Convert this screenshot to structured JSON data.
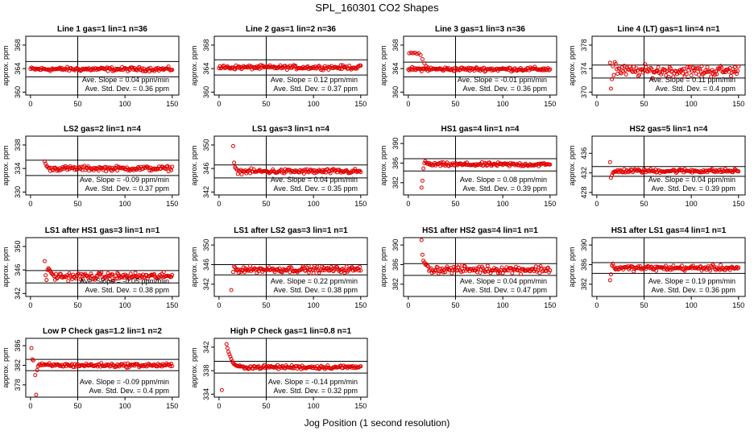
{
  "chart_data": {
    "type": "scatter",
    "title": "SPL_160301  CO2 Shapes",
    "xlabel": "Jog Position (1 second resolution)",
    "ylabel": "approx. ppm",
    "marker_color": "#e00000",
    "x_ticks": [
      0,
      50,
      100,
      150
    ],
    "x_vline": 50,
    "panels": [
      {
        "title": "Line 1 gas=1 lin=1 n=36",
        "ylim": [
          359.5,
          369.5
        ],
        "yticks": [
          360,
          364,
          368
        ],
        "hlines": [
          365.2,
          362.6
        ],
        "series": {
          "x_start": 0,
          "x_end": 150,
          "level": 363.9,
          "spread": 0.25
        },
        "slope_text": "Ave. Slope = 0.04  ppm/min",
        "sd_text": "Ave. Std. Dev. = 0.36  ppm"
      },
      {
        "title": "Line 2 gas=1 lin=2 n=36",
        "ylim": [
          359.5,
          369.5
        ],
        "yticks": [
          360,
          364,
          368
        ],
        "hlines": [
          365.5,
          362.9
        ],
        "series": {
          "x_start": 0,
          "x_end": 150,
          "level": 364.2,
          "spread": 0.25
        },
        "slope_text": "Ave. Slope = 0.12  ppm/min",
        "sd_text": "Ave. Std. Dev. = 0.37  ppm"
      },
      {
        "title": "Line 3 gas=1 lin=3 n=36",
        "ylim": [
          359.5,
          369.5
        ],
        "yticks": [
          360,
          364,
          368
        ],
        "hlines": [
          365.1,
          362.6
        ],
        "series": {
          "x_start": 0,
          "x_end": 150,
          "level": 363.9,
          "spread": 0.25,
          "pre": [
            [
              1,
              366.6
            ],
            [
              3,
              366.7
            ],
            [
              5,
              366.6
            ],
            [
              7,
              366.7
            ],
            [
              9,
              366.5
            ],
            [
              11,
              366.6
            ],
            [
              13,
              366.3
            ],
            [
              15,
              365.6
            ],
            [
              17,
              364.9
            ],
            [
              19,
              364.4
            ],
            [
              21,
              364.2
            ]
          ]
        },
        "slope_text": "Ave. Slope = -0.01  ppm/min",
        "sd_text": "Ave. Std. Dev. = 0.36  ppm"
      },
      {
        "title": "Line 4 (LT) gas=1 lin=4 n=1",
        "ylim": [
          369.5,
          379.5
        ],
        "yticks": [
          370,
          374,
          378
        ],
        "hlines": [
          374.6,
          372.4
        ],
        "series": {
          "x_start": 22,
          "x_end": 150,
          "level": 373.6,
          "spread": 0.7,
          "pre": [
            [
              14,
              375.0
            ],
            [
              15,
              370.6
            ],
            [
              16,
              372.2
            ],
            [
              17,
              374.4
            ],
            [
              18,
              372.9
            ],
            [
              19,
              375.1
            ],
            [
              20,
              374.8
            ],
            [
              21,
              373.9
            ]
          ]
        },
        "slope_text": "Ave. Slope = 0.11  ppm/min",
        "sd_text": "Ave. Std. Dev. = 0.4  ppm"
      },
      {
        "title": "LS2 gas=2 lin=1 n=4",
        "ylim": [
          329.5,
          339.5
        ],
        "yticks": [
          330,
          334,
          338
        ],
        "hlines": [
          335.4,
          332.8
        ],
        "series": {
          "x_start": 20,
          "x_end": 150,
          "level": 334.0,
          "spread": 0.3,
          "pre": [
            [
              15,
              335.2
            ],
            [
              16,
              334.8
            ],
            [
              17,
              334.4
            ],
            [
              18,
              334.3
            ],
            [
              19,
              334.1
            ]
          ]
        },
        "slope_text": "Ave. Slope = -0.09  ppm/min",
        "sd_text": "Ave. Std. Dev. = 0.37  ppm"
      },
      {
        "title": "LS1 gas=3 lin=1 n=4",
        "ylim": [
          341.5,
          351.5
        ],
        "yticks": [
          342,
          346,
          350
        ],
        "hlines": [
          346.6,
          344.4
        ],
        "series": {
          "x_start": 20,
          "x_end": 150,
          "level": 345.5,
          "spread": 0.3,
          "pre": [
            [
              15,
              349.8
            ],
            [
              16,
              347.0
            ],
            [
              17,
              346.2
            ],
            [
              18,
              346.0
            ],
            [
              19,
              345.8
            ]
          ]
        },
        "slope_text": "Ave. Slope = 0.04  ppm/min",
        "sd_text": "Ave. Std. Dev. = 0.35  ppm"
      },
      {
        "title": "HS1 gas=4 lin=1 n=4",
        "ylim": [
          379.5,
          391.5
        ],
        "yticks": [
          382,
          386,
          390
        ],
        "hlines": [
          386.9,
          384.4
        ],
        "series": {
          "x_start": 22,
          "x_end": 150,
          "level": 385.7,
          "spread": 0.3,
          "pre": [
            [
              14,
              381.0
            ],
            [
              15,
              382.4
            ],
            [
              16,
              384.9
            ],
            [
              17,
              386.0
            ],
            [
              18,
              386.4
            ],
            [
              19,
              386.1
            ],
            [
              20,
              385.9
            ],
            [
              21,
              385.8
            ]
          ]
        },
        "slope_text": "Ave. Slope = 0.08  ppm/min",
        "sd_text": "Ave. Std. Dev. = 0.39  ppm"
      },
      {
        "title": "HS2 gas=5 lin=1 n=4",
        "ylim": [
          427.5,
          439.5
        ],
        "yticks": [
          428,
          432,
          436
        ],
        "hlines": [
          433.3,
          431.3
        ],
        "series": {
          "x_start": 22,
          "x_end": 150,
          "level": 432.4,
          "spread": 0.3,
          "pre": [
            [
              14,
              434.2
            ],
            [
              15,
              431.0
            ],
            [
              16,
              431.5
            ],
            [
              17,
              432.0
            ],
            [
              18,
              432.2
            ],
            [
              19,
              432.3
            ],
            [
              20,
              432.2
            ],
            [
              21,
              432.3
            ]
          ]
        },
        "slope_text": "Ave. Slope = 0.04  ppm/min",
        "sd_text": "Ave. Std. Dev. = 0.39  ppm"
      },
      {
        "title": "LS1 after HS1 gas=3 lin=1 n=1",
        "ylim": [
          341.5,
          351.5
        ],
        "yticks": [
          342,
          346,
          350
        ],
        "hlines": [
          345.9,
          343.8
        ],
        "series": {
          "x_start": 24,
          "x_end": 150,
          "level": 344.9,
          "spread": 0.45,
          "pre": [
            [
              15,
              347.5
            ],
            [
              16,
              345.1
            ],
            [
              17,
              344.3
            ],
            [
              18,
              346.0
            ],
            [
              19,
              346.3
            ],
            [
              20,
              346.1
            ],
            [
              21,
              345.8
            ],
            [
              22,
              345.5
            ],
            [
              23,
              345.3
            ]
          ]
        },
        "slope_text": "Ave. Slope = -0.05  ppm/min",
        "sd_text": "Ave. Std. Dev. = 0.38  ppm"
      },
      {
        "title": "LS1 after LS2 gas=3 lin=1 n=1",
        "ylim": [
          339.5,
          351.5
        ],
        "yticks": [
          342,
          346,
          350
        ],
        "hlines": [
          346.0,
          343.9
        ],
        "series": {
          "x_start": 20,
          "x_end": 150,
          "level": 345.0,
          "spread": 0.45,
          "pre": [
            [
              13,
              340.8
            ],
            [
              15,
              344.5
            ],
            [
              16,
              345.6
            ],
            [
              17,
              345.4
            ],
            [
              18,
              345.0
            ],
            [
              19,
              344.8
            ]
          ]
        },
        "slope_text": "Ave. Slope = 0.22  ppm/min",
        "sd_text": "Ave. Std. Dev. = 0.38  ppm"
      },
      {
        "title": "HS1 after HS2 gas=4 lin=1 n=1",
        "ylim": [
          379.5,
          391.5
        ],
        "yticks": [
          382,
          386,
          390
        ],
        "hlines": [
          386.2,
          383.8
        ],
        "series": {
          "x_start": 22,
          "x_end": 150,
          "level": 385.0,
          "spread": 0.55,
          "pre": [
            [
              14,
              391.0
            ],
            [
              15,
              388.0
            ],
            [
              16,
              386.8
            ],
            [
              17,
              386.4
            ],
            [
              18,
              386.0
            ],
            [
              19,
              386.1
            ],
            [
              20,
              385.8
            ],
            [
              21,
              385.6
            ]
          ]
        },
        "slope_text": "Ave. Slope = 0.04  ppm/min",
        "sd_text": "Ave. Std. Dev. = 0.47  ppm"
      },
      {
        "title": "HS1 after LS1 gas=4 lin=1 n=1",
        "ylim": [
          379.5,
          391.5
        ],
        "yticks": [
          382,
          386,
          390
        ],
        "hlines": [
          386.4,
          384.2
        ],
        "series": {
          "x_start": 22,
          "x_end": 150,
          "level": 385.3,
          "spread": 0.4,
          "pre": [
            [
              14,
              382.8
            ],
            [
              15,
              384.0
            ],
            [
              16,
              385.8
            ],
            [
              17,
              386.2
            ],
            [
              18,
              385.6
            ],
            [
              19,
              385.2
            ],
            [
              20,
              385.0
            ],
            [
              21,
              385.1
            ]
          ]
        },
        "slope_text": "Ave. Slope = 0.19  ppm/min",
        "sd_text": "Ave. Std. Dev. = 0.36  ppm"
      },
      {
        "title": "Low P Check gas=1.2 lin=1 n=2",
        "ylim": [
          375.5,
          387.5
        ],
        "yticks": [
          378,
          382,
          386
        ],
        "hlines": [
          383.2,
          380.9
        ],
        "series": {
          "x_start": 12,
          "x_end": 150,
          "level": 382.0,
          "spread": 0.3,
          "pre": [
            [
              1,
              385.5
            ],
            [
              2,
              383.2
            ],
            [
              3,
              383.0
            ],
            [
              5,
              380.0
            ],
            [
              6,
              376.0
            ],
            [
              7,
              381.0
            ],
            [
              8,
              381.8
            ],
            [
              9,
              382.1
            ],
            [
              10,
              382.2
            ],
            [
              11,
              382.0
            ]
          ]
        },
        "slope_text": "Ave. Slope = -0.09  ppm/min",
        "sd_text": "Ave. Std. Dev. = 0.4  ppm"
      },
      {
        "title": "High P Check gas=1 lin=0.8 n=1",
        "ylim": [
          333.5,
          343.5
        ],
        "yticks": [
          334,
          338,
          342
        ],
        "hlines": [
          339.6,
          337.6
        ],
        "series": {
          "x_start": 22,
          "x_end": 150,
          "level": 338.6,
          "spread": 0.25,
          "pre": [
            [
              3,
              334.7
            ],
            [
              8,
              342.5
            ],
            [
              9,
              341.8
            ],
            [
              10,
              341.2
            ],
            [
              11,
              340.8
            ],
            [
              12,
              340.4
            ],
            [
              13,
              340.0
            ],
            [
              14,
              339.6
            ],
            [
              15,
              339.3
            ],
            [
              16,
              339.1
            ],
            [
              17,
              339.0
            ],
            [
              18,
              338.9
            ],
            [
              19,
              338.8
            ],
            [
              20,
              338.8
            ],
            [
              21,
              338.7
            ]
          ]
        },
        "slope_text": "Ave. Slope = -0.14  ppm/min",
        "sd_text": "Ave. Std. Dev. = 0.32  ppm"
      }
    ]
  }
}
